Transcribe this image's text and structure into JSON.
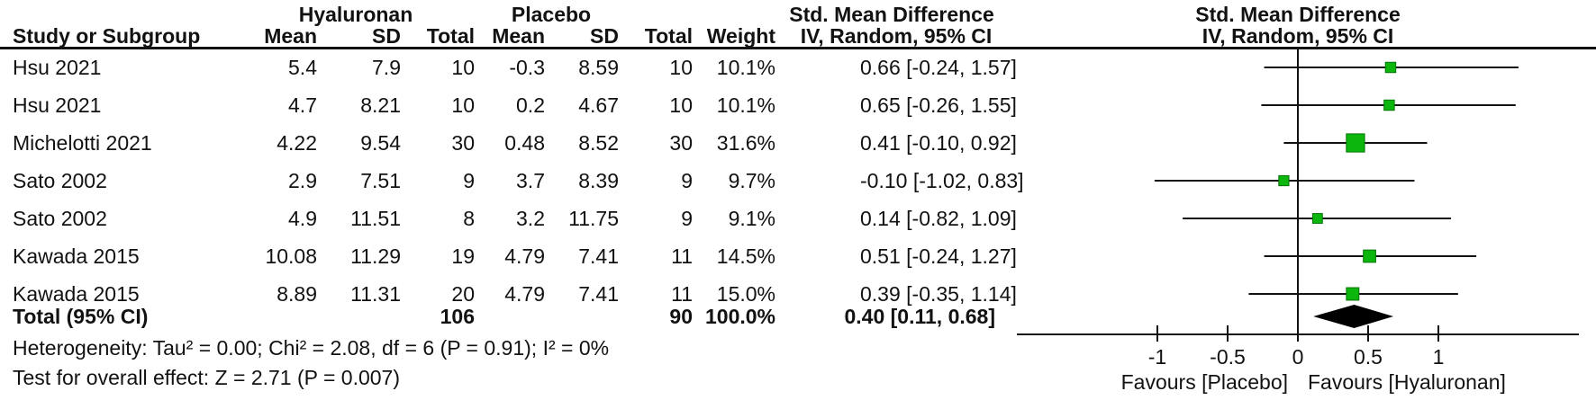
{
  "table": {
    "group_headers": {
      "experimental": "Hyaluronan",
      "control": "Placebo",
      "smd_left": "Std. Mean Difference",
      "smd_right": "Std. Mean Difference"
    },
    "column_headers": {
      "study": "Study or Subgroup",
      "mean1": "Mean",
      "sd1": "SD",
      "total1": "Total",
      "mean2": "Mean",
      "sd2": "SD",
      "total2": "Total",
      "weight": "Weight",
      "ci_left": "IV, Random, 95% CI",
      "ci_right": "IV, Random, 95% CI"
    },
    "rows": [
      {
        "study": "Hsu 2021",
        "mean1": "5.4",
        "sd1": "7.9",
        "total1": "10",
        "mean2": "-0.3",
        "sd2": "8.59",
        "total2": "10",
        "weight": "10.1%",
        "ci_text": "0.66 [-0.24, 1.57]"
      },
      {
        "study": "Hsu 2021",
        "mean1": "4.7",
        "sd1": "8.21",
        "total1": "10",
        "mean2": "0.2",
        "sd2": "4.67",
        "total2": "10",
        "weight": "10.1%",
        "ci_text": "0.65 [-0.26, 1.55]"
      },
      {
        "study": "Michelotti 2021",
        "mean1": "4.22",
        "sd1": "9.54",
        "total1": "30",
        "mean2": "0.48",
        "sd2": "8.52",
        "total2": "30",
        "weight": "31.6%",
        "ci_text": "0.41 [-0.10, 0.92]"
      },
      {
        "study": "Sato 2002",
        "mean1": "2.9",
        "sd1": "7.51",
        "total1": "9",
        "mean2": "3.7",
        "sd2": "8.39",
        "total2": "9",
        "weight": "9.7%",
        "ci_text": "-0.10 [-1.02, 0.83]"
      },
      {
        "study": "Sato 2002",
        "mean1": "4.9",
        "sd1": "11.51",
        "total1": "8",
        "mean2": "3.2",
        "sd2": "11.75",
        "total2": "9",
        "weight": "9.1%",
        "ci_text": "0.14 [-0.82, 1.09]"
      },
      {
        "study": "Kawada 2015",
        "mean1": "10.08",
        "sd1": "11.29",
        "total1": "19",
        "mean2": "4.79",
        "sd2": "7.41",
        "total2": "11",
        "weight": "14.5%",
        "ci_text": "0.51 [-0.24, 1.27]"
      },
      {
        "study": "Kawada 2015",
        "mean1": "8.89",
        "sd1": "11.31",
        "total1": "20",
        "mean2": "4.79",
        "sd2": "7.41",
        "total2": "11",
        "weight": "15.0%",
        "ci_text": "0.39 [-0.35, 1.14]"
      }
    ],
    "total": {
      "label": "Total (95% CI)",
      "total1": "106",
      "total2": "90",
      "weight": "100.0%",
      "ci_text": "0.40 [0.11, 0.68]"
    },
    "heterogeneity": "Heterogeneity: Tau² = 0.00; Chi² = 2.08, df = 6 (P = 0.91); I² = 0%",
    "overall_effect": "Test for overall effect: Z = 2.71 (P = 0.007)"
  },
  "plot": {
    "favours_left": "Favours [Placebo]",
    "favours_right": "Favours [Hyaluronan]",
    "tick_labels": [
      "-1",
      "-0.5",
      "0",
      "0.5",
      "1"
    ],
    "marker_color": "#0db60d",
    "marker_border": "#067406",
    "line_color": "#121212",
    "diamond_color": "#000000"
  },
  "chart_data": {
    "type": "scatter",
    "subtype": "forest-plot",
    "title": "Std. Mean Difference IV, Random, 95% CI",
    "studies": [
      "Hsu 2021",
      "Hsu 2021",
      "Michelotti 2021",
      "Sato 2002",
      "Sato 2002",
      "Kawada 2015",
      "Kawada 2015"
    ],
    "estimates": [
      0.66,
      0.65,
      0.41,
      -0.1,
      0.14,
      0.51,
      0.39
    ],
    "ci_low": [
      -0.24,
      -0.26,
      -0.1,
      -1.02,
      -0.82,
      -0.24,
      -0.35
    ],
    "ci_high": [
      1.57,
      1.55,
      0.92,
      0.83,
      1.09,
      1.27,
      1.14
    ],
    "weights_pct": [
      10.1,
      10.1,
      31.6,
      9.7,
      9.1,
      14.5,
      15.0
    ],
    "experimental_n": [
      10,
      10,
      30,
      9,
      8,
      19,
      20
    ],
    "control_n": [
      10,
      10,
      30,
      9,
      9,
      11,
      11
    ],
    "total": {
      "estimate": 0.4,
      "ci_low": 0.11,
      "ci_high": 0.68,
      "n_experimental": 106,
      "n_control": 90,
      "weight_pct": 100.0
    },
    "xlim": [
      -2,
      2
    ],
    "xticks": [
      -1,
      -0.5,
      0,
      0.5,
      1
    ],
    "xlabel_left": "Favours [Placebo]",
    "xlabel_right": "Favours [Hyaluronan]",
    "heterogeneity": {
      "tau2": 0.0,
      "chi2": 2.08,
      "df": 6,
      "p_heterogeneity": 0.91,
      "i2_pct": 0
    },
    "overall_effect": {
      "z": 2.71,
      "p": 0.007
    },
    "grid": false,
    "legend": false
  }
}
